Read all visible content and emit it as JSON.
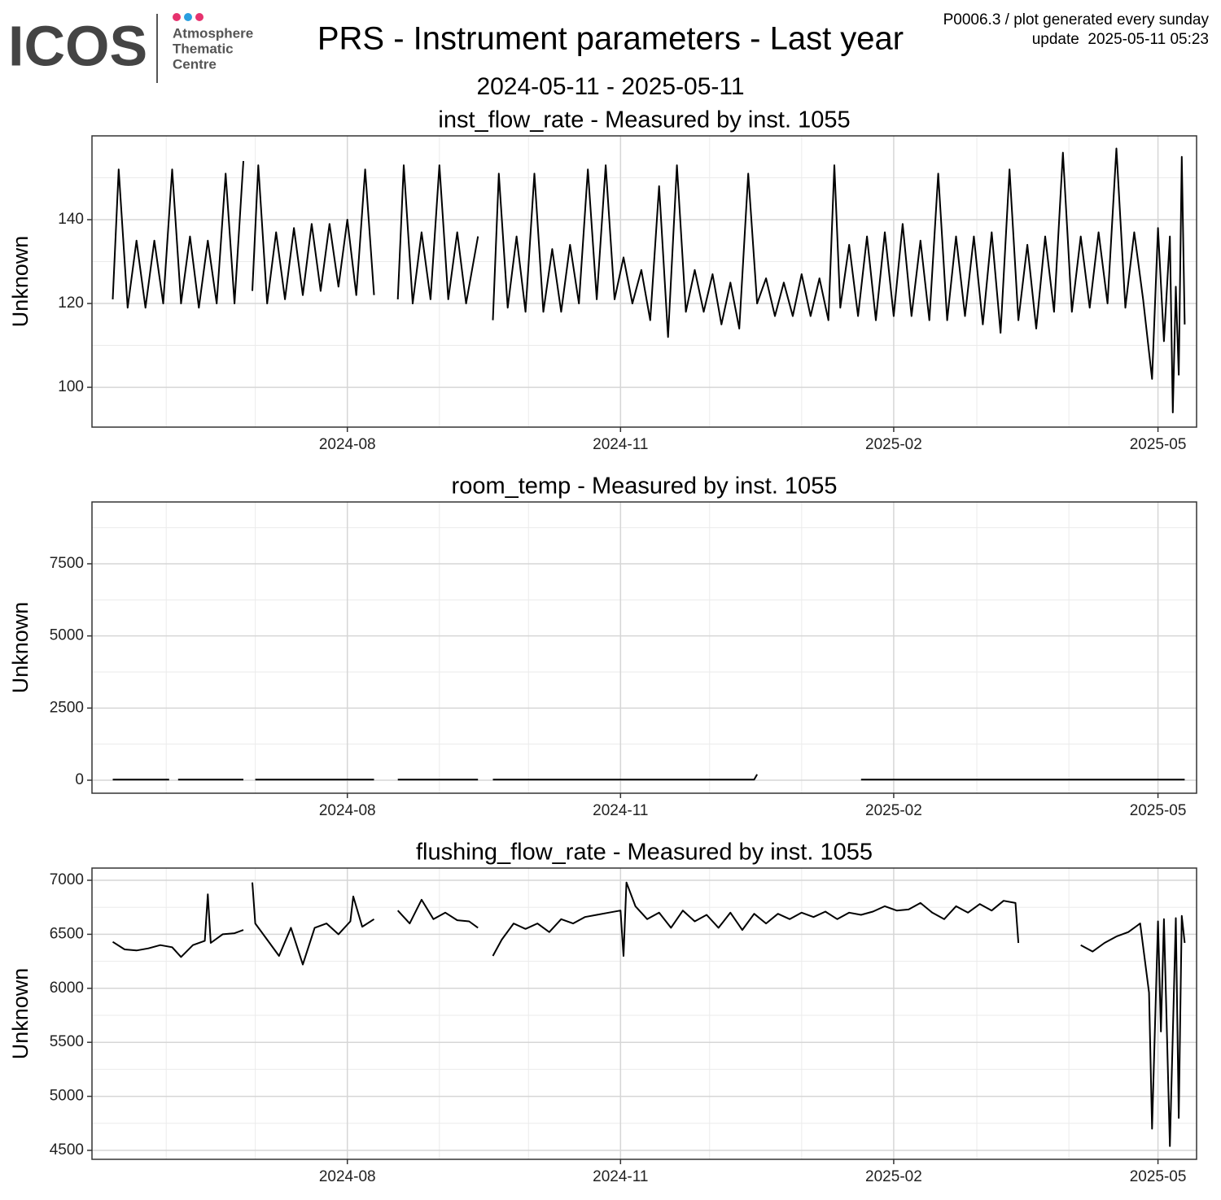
{
  "header": {
    "logo": "ICOS",
    "logo_lines": [
      "Atmosphere",
      "Thematic",
      "Centre"
    ],
    "title": "PRS - Instrument parameters - Last year",
    "subtitle": "2024-05-11 - 2025-05-11",
    "note": "P0006.3 / plot generated every sunday",
    "update": "update  2025-05-11 05:23"
  },
  "chart_data": [
    {
      "type": "line",
      "title": "inst_flow_rate - Measured by inst. 1055",
      "y_label": "Unknown",
      "color": "#000000",
      "grid": true,
      "xlim": [
        "2024-05-07",
        "2025-05-14"
      ],
      "xticks": [
        "2024-08",
        "2024-11",
        "2025-02",
        "2025-05"
      ],
      "ylim": [
        90.5,
        160
      ],
      "yticks": [
        100,
        120,
        140
      ],
      "x": [
        "2024-05-14",
        "2024-05-16",
        "2024-05-19",
        "2024-05-22",
        "2024-05-25",
        "2024-05-28",
        "2024-05-31",
        "2024-06-03",
        "2024-06-06",
        "2024-06-09",
        "2024-06-12",
        "2024-06-15",
        "2024-06-18",
        "2024-06-21",
        "2024-06-24",
        "2024-06-27",
        "2024-06-29",
        "2024-06-30",
        "2024-07-02",
        "2024-07-05",
        "2024-07-08",
        "2024-07-11",
        "2024-07-14",
        "2024-07-17",
        "2024-07-20",
        "2024-07-23",
        "2024-07-26",
        "2024-07-29",
        "2024-08-01",
        "2024-08-04",
        "2024-08-07",
        "2024-08-10",
        "2024-08-14",
        "2024-08-18",
        "2024-08-20",
        "2024-08-23",
        "2024-08-26",
        "2024-08-29",
        "2024-09-01",
        "2024-09-04",
        "2024-09-07",
        "2024-09-10",
        "2024-09-14",
        "2024-09-16",
        "2024-09-19",
        "2024-09-21",
        "2024-09-24",
        "2024-09-27",
        "2024-09-30",
        "2024-10-03",
        "2024-10-06",
        "2024-10-09",
        "2024-10-12",
        "2024-10-15",
        "2024-10-18",
        "2024-10-21",
        "2024-10-24",
        "2024-10-27",
        "2024-10-30",
        "2024-11-02",
        "2024-11-05",
        "2024-11-08",
        "2024-11-11",
        "2024-11-14",
        "2024-11-17",
        "2024-11-20",
        "2024-11-23",
        "2024-11-26",
        "2024-11-29",
        "2024-12-02",
        "2024-12-05",
        "2024-12-08",
        "2024-12-11",
        "2024-12-14",
        "2024-12-17",
        "2024-12-20",
        "2024-12-23",
        "2024-12-26",
        "2024-12-29",
        "2025-01-01",
        "2025-01-04",
        "2025-01-07",
        "2025-01-10",
        "2025-01-12",
        "2025-01-14",
        "2025-01-17",
        "2025-01-20",
        "2025-01-23",
        "2025-01-26",
        "2025-01-29",
        "2025-02-01",
        "2025-02-04",
        "2025-02-07",
        "2025-02-10",
        "2025-02-13",
        "2025-02-16",
        "2025-02-19",
        "2025-02-22",
        "2025-02-25",
        "2025-02-28",
        "2025-03-03",
        "2025-03-06",
        "2025-03-09",
        "2025-03-12",
        "2025-03-15",
        "2025-03-18",
        "2025-03-21",
        "2025-03-24",
        "2025-03-27",
        "2025-03-30",
        "2025-04-02",
        "2025-04-05",
        "2025-04-08",
        "2025-04-11",
        "2025-04-14",
        "2025-04-17",
        "2025-04-20",
        "2025-04-23",
        "2025-04-26",
        "2025-04-29",
        "2025-05-01",
        "2025-05-03",
        "2025-05-05",
        "2025-05-06",
        "2025-05-07",
        "2025-05-08",
        "2025-05-09",
        "2025-05-10"
      ],
      "values": [
        121,
        152,
        119,
        135,
        119,
        135,
        120,
        152,
        120,
        136,
        119,
        135,
        120,
        151,
        120,
        154,
        null,
        123,
        153,
        120,
        137,
        121,
        138,
        122,
        139,
        123,
        139,
        124,
        140,
        122,
        152,
        122,
        null,
        121,
        153,
        120,
        137,
        121,
        153,
        121,
        137,
        120,
        136,
        null,
        116,
        151,
        119,
        136,
        118,
        151,
        118,
        133,
        118,
        134,
        120,
        152,
        121,
        153,
        121,
        131,
        120,
        128,
        116,
        148,
        112,
        153,
        118,
        128,
        118,
        127,
        115,
        125,
        114,
        151,
        120,
        126,
        117,
        125,
        117,
        127,
        117,
        126,
        116,
        153,
        119,
        134,
        117,
        136,
        116,
        137,
        117,
        139,
        117,
        135,
        116,
        151,
        116,
        136,
        117,
        136,
        115,
        137,
        113,
        152,
        116,
        134,
        114,
        136,
        118,
        156,
        118,
        136,
        119,
        137,
        120,
        157,
        119,
        137,
        121,
        102,
        138,
        111,
        136,
        94,
        124,
        103,
        155,
        115
      ]
    },
    {
      "type": "line",
      "title": "room_temp - Measured by inst. 1055",
      "y_label": "Unknown",
      "color": "#000000",
      "grid": true,
      "xlim": [
        "2024-05-07",
        "2025-05-14"
      ],
      "xticks": [
        "2024-08",
        "2024-11",
        "2025-02",
        "2025-05"
      ],
      "ylim": [
        -451,
        9642
      ],
      "yticks": [
        0,
        2500,
        5000,
        7500
      ],
      "x": [
        "2024-05-14",
        "2024-06-02",
        "2024-06-03",
        "2024-06-05",
        "2024-06-27",
        "2024-06-29",
        "2024-07-01",
        "2024-08-10",
        "2024-08-14",
        "2024-08-18",
        "2024-09-14",
        "2024-09-16",
        "2024-09-19",
        "2024-12-16",
        "2024-12-17",
        "2024-12-20",
        "2025-01-21",
        "2025-05-10"
      ],
      "values": [
        20,
        20,
        null,
        20,
        20,
        null,
        20,
        20,
        null,
        20,
        20,
        null,
        20,
        20,
        200,
        null,
        20,
        20
      ]
    },
    {
      "type": "line",
      "title": "flushing_flow_rate - Measured by inst. 1055",
      "y_label": "Unknown",
      "color": "#000000",
      "grid": true,
      "xlim": [
        "2024-05-07",
        "2025-05-14"
      ],
      "xticks": [
        "2024-08",
        "2024-11",
        "2025-02",
        "2025-05"
      ],
      "ylim": [
        4417,
        7113
      ],
      "yticks": [
        4500,
        5000,
        5500,
        6000,
        6500,
        7000
      ],
      "x": [
        "2024-05-14",
        "2024-05-18",
        "2024-05-22",
        "2024-05-26",
        "2024-05-30",
        "2024-06-03",
        "2024-06-06",
        "2024-06-10",
        "2024-06-14",
        "2024-06-15",
        "2024-06-16",
        "2024-06-20",
        "2024-06-24",
        "2024-06-27",
        "2024-06-29",
        "2024-06-30",
        "2024-07-01",
        "2024-07-05",
        "2024-07-09",
        "2024-07-13",
        "2024-07-17",
        "2024-07-21",
        "2024-07-25",
        "2024-07-29",
        "2024-08-02",
        "2024-08-03",
        "2024-08-06",
        "2024-08-10",
        "2024-08-14",
        "2024-08-18",
        "2024-08-22",
        "2024-08-26",
        "2024-08-30",
        "2024-09-03",
        "2024-09-07",
        "2024-09-11",
        "2024-09-14",
        "2024-09-16",
        "2024-09-19",
        "2024-09-22",
        "2024-09-26",
        "2024-09-30",
        "2024-10-04",
        "2024-10-08",
        "2024-10-12",
        "2024-10-16",
        "2024-10-20",
        "2024-10-24",
        "2024-10-28",
        "2024-11-01",
        "2024-11-02",
        "2024-11-03",
        "2024-11-06",
        "2024-11-10",
        "2024-11-14",
        "2024-11-18",
        "2024-11-22",
        "2024-11-26",
        "2024-11-30",
        "2024-12-04",
        "2024-12-08",
        "2024-12-12",
        "2024-12-16",
        "2024-12-20",
        "2024-12-24",
        "2024-12-28",
        "2025-01-01",
        "2025-01-05",
        "2025-01-09",
        "2025-01-13",
        "2025-01-17",
        "2025-01-21",
        "2025-01-25",
        "2025-01-29",
        "2025-02-02",
        "2025-02-06",
        "2025-02-10",
        "2025-02-14",
        "2025-02-18",
        "2025-02-22",
        "2025-02-26",
        "2025-03-02",
        "2025-03-06",
        "2025-03-10",
        "2025-03-14",
        "2025-03-15",
        "2025-03-20",
        "2025-04-05",
        "2025-04-09",
        "2025-04-13",
        "2025-04-17",
        "2025-04-21",
        "2025-04-25",
        "2025-04-28",
        "2025-04-29",
        "2025-05-01",
        "2025-05-02",
        "2025-05-03",
        "2025-05-05",
        "2025-05-07",
        "2025-05-08",
        "2025-05-09",
        "2025-05-10"
      ],
      "values": [
        6430,
        6360,
        6350,
        6370,
        6400,
        6380,
        6290,
        6400,
        6440,
        6870,
        6420,
        6500,
        6510,
        6540,
        null,
        6980,
        6600,
        6450,
        6300,
        6560,
        6220,
        6560,
        6600,
        6500,
        6620,
        6850,
        6570,
        6640,
        null,
        6720,
        6600,
        6820,
        6640,
        6700,
        6630,
        6620,
        6560,
        null,
        6300,
        6450,
        6600,
        6550,
        6600,
        6520,
        6640,
        6600,
        6660,
        6680,
        6700,
        6720,
        6300,
        6980,
        6760,
        6640,
        6700,
        6560,
        6720,
        6620,
        6680,
        6560,
        6700,
        6540,
        6690,
        6600,
        6690,
        6640,
        6700,
        6660,
        6710,
        6640,
        6700,
        6680,
        6710,
        6760,
        6720,
        6730,
        6790,
        6700,
        6640,
        6760,
        6700,
        6780,
        6720,
        6810,
        6790,
        6420,
        null,
        6400,
        6340,
        6420,
        6480,
        6520,
        6600,
        5960,
        4700,
        6620,
        5600,
        6640,
        4540,
        6650,
        4800,
        6670,
        6420
      ]
    }
  ]
}
